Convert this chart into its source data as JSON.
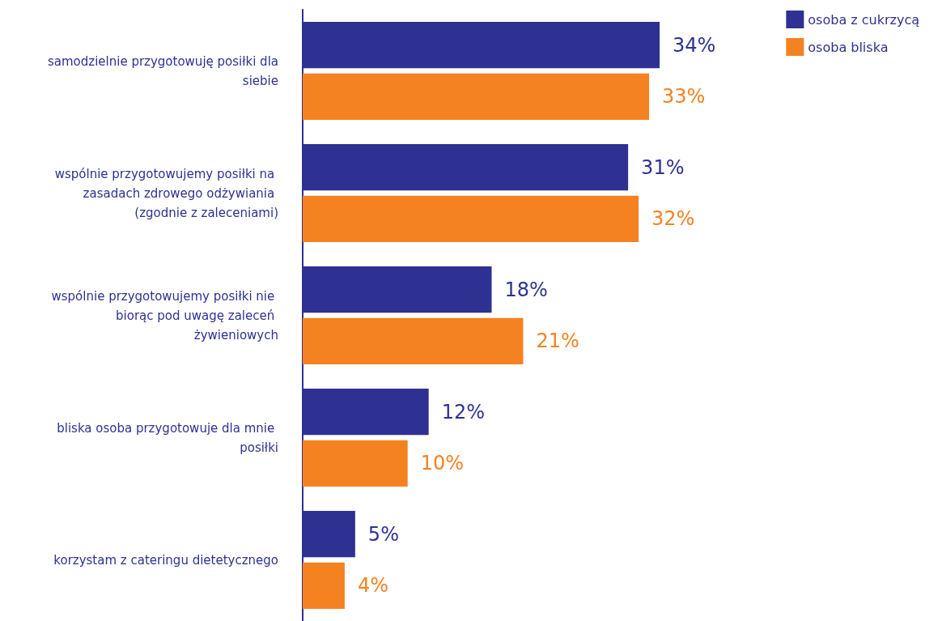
{
  "chart_data": {
    "type": "bar",
    "orientation": "horizontal",
    "legend": "top right",
    "categories": [
      "samodzielnie przygotowuję posiłki dla siebie",
      "wspólnie przygotowujemy posiłki na zasadach zdrowego odżywiania (zgodnie z zaleceniami)",
      "wspólnie przygotowujemy posiłki nie biorąc pod uwagę zaleceń żywieniowych",
      "bliska osoba przygotowuje dla mnie posiłki",
      "korzystam z cateringu dietetycznego"
    ],
    "series": [
      {
        "name": "osoba z cukrzycą",
        "color": "#2e3192",
        "values": [
          34,
          31,
          18,
          12,
          5
        ],
        "value_labels": [
          "34%",
          "31%",
          "18%",
          "12%",
          "5%"
        ]
      },
      {
        "name": "osoba bliska",
        "color": "#f58220",
        "values": [
          33,
          32,
          21,
          10,
          4
        ],
        "value_labels": [
          "33%",
          "32%",
          "21%",
          "10%",
          "4%"
        ]
      }
    ]
  }
}
